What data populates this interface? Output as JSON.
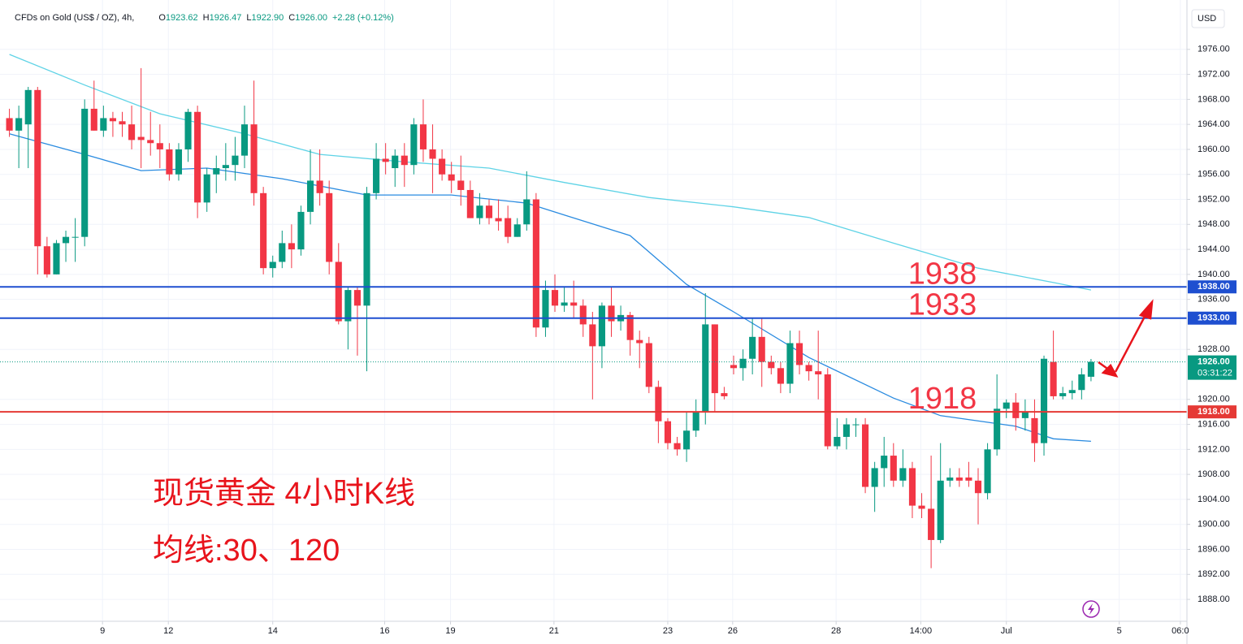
{
  "chart_data": {
    "type": "candlestick",
    "header": {
      "symbol": "CFDs on Gold (US$ / OZ), 4h,",
      "fields": [
        {
          "label": "O",
          "value": "1923.62"
        },
        {
          "label": "H",
          "value": "1926.47"
        },
        {
          "label": "L",
          "value": "1922.90"
        },
        {
          "label": "C",
          "value": "1926.00"
        }
      ],
      "change": "+2.28 (+0.12%)"
    },
    "currency": "USD",
    "annotation_lines": [
      "现货黄金 4小时K线",
      "均线:30、120"
    ],
    "up_color": "#089981",
    "down_color": "#f23645",
    "ohlc": [
      [
        1965,
        1966.5,
        1962,
        1963
      ],
      [
        1963,
        1967,
        1957,
        1965
      ],
      [
        1964,
        1970,
        1957,
        1969.5
      ],
      [
        1969.5,
        1970,
        1940,
        1944.5
      ],
      [
        1944.5,
        1946,
        1939.5,
        1940
      ],
      [
        1940,
        1945.5,
        1940,
        1945
      ],
      [
        1945,
        1947,
        1942,
        1946
      ],
      [
        1946,
        1949,
        1942,
        1946
      ],
      [
        1946,
        1968,
        1944.5,
        1966.5
      ],
      [
        1966.5,
        1971,
        1963,
        1963
      ],
      [
        1963,
        1967,
        1962,
        1965
      ],
      [
        1965,
        1966,
        1962,
        1964.5
      ],
      [
        1964.5,
        1966,
        1962,
        1964
      ],
      [
        1964,
        1967,
        1960,
        1961.5
      ],
      [
        1962,
        1973,
        1957,
        1961.5
      ],
      [
        1961.5,
        1966,
        1959,
        1961
      ],
      [
        1961,
        1964,
        1957,
        1960
      ],
      [
        1960,
        1961,
        1955,
        1956
      ],
      [
        1956,
        1961,
        1955,
        1960
      ],
      [
        1960,
        1966.5,
        1958,
        1966
      ],
      [
        1966,
        1967,
        1949,
        1951.5
      ],
      [
        1951.5,
        1957,
        1950,
        1956
      ],
      [
        1956,
        1959,
        1953,
        1957
      ],
      [
        1957,
        1961,
        1955,
        1957.5
      ],
      [
        1957.5,
        1962,
        1955,
        1959
      ],
      [
        1959,
        1967,
        1957,
        1964
      ],
      [
        1964,
        1971,
        1951,
        1953
      ],
      [
        1953,
        1954,
        1940,
        1941
      ],
      [
        1941,
        1943,
        1939.5,
        1942
      ],
      [
        1942,
        1947,
        1941,
        1945
      ],
      [
        1945,
        1948,
        1941,
        1944
      ],
      [
        1944,
        1951,
        1943,
        1950
      ],
      [
        1950,
        1960,
        1948,
        1955
      ],
      [
        1955,
        1960,
        1951,
        1953
      ],
      [
        1953,
        1955,
        1940,
        1942
      ],
      [
        1942,
        1945,
        1932,
        1932.5
      ],
      [
        1932.5,
        1938,
        1928,
        1937.5
      ],
      [
        1937.5,
        1938,
        1927,
        1935
      ],
      [
        1935,
        1954,
        1924.5,
        1953
      ],
      [
        1953,
        1961,
        1952,
        1958.5
      ],
      [
        1958.5,
        1961,
        1956,
        1958
      ],
      [
        1957,
        1960,
        1954,
        1959
      ],
      [
        1959,
        1961,
        1954,
        1957.5
      ],
      [
        1957.5,
        1965,
        1956,
        1964
      ],
      [
        1964,
        1968,
        1958,
        1960
      ],
      [
        1960,
        1964,
        1953,
        1958.5
      ],
      [
        1958.5,
        1960,
        1955,
        1956
      ],
      [
        1956,
        1958,
        1953,
        1955
      ],
      [
        1955,
        1959,
        1951,
        1953.5
      ],
      [
        1953.5,
        1955,
        1949,
        1949
      ],
      [
        1949,
        1953,
        1948,
        1951
      ],
      [
        1951,
        1952,
        1948,
        1949
      ],
      [
        1949,
        1952,
        1947,
        1948.5
      ],
      [
        1949,
        1951,
        1945,
        1946
      ],
      [
        1946,
        1949,
        1946,
        1948
      ],
      [
        1948,
        1956.5,
        1947,
        1952
      ],
      [
        1952,
        1953,
        1930,
        1931.5
      ],
      [
        1931.5,
        1939,
        1930,
        1937.5
      ],
      [
        1937.5,
        1940,
        1934,
        1935
      ],
      [
        1935,
        1938,
        1934,
        1935.5
      ],
      [
        1935.5,
        1939,
        1933,
        1935
      ],
      [
        1935,
        1936,
        1930,
        1932
      ],
      [
        1932,
        1934,
        1920,
        1928.5
      ],
      [
        1928.5,
        1935.5,
        1925,
        1935
      ],
      [
        1935,
        1938,
        1930,
        1932.5
      ],
      [
        1932.5,
        1935,
        1931,
        1933.5
      ],
      [
        1933.5,
        1934,
        1927,
        1929.5
      ],
      [
        1929.5,
        1931,
        1925,
        1929
      ],
      [
        1929,
        1930,
        1921,
        1922
      ],
      [
        1922,
        1923,
        1913,
        1916.5
      ],
      [
        1916.5,
        1917,
        1912,
        1913
      ],
      [
        1913,
        1914,
        1911,
        1912
      ],
      [
        1912,
        1918,
        1910,
        1915
      ],
      [
        1915,
        1920,
        1914,
        1918
      ],
      [
        1918,
        1937,
        1916,
        1932
      ],
      [
        1932,
        1932,
        1918,
        1921
      ],
      [
        1921,
        1922,
        1920,
        1920.5
      ],
      [
        1925.5,
        1927,
        1924,
        1925
      ],
      [
        1925,
        1928,
        1923,
        1926.5
      ],
      [
        1926.5,
        1933,
        1924,
        1930
      ],
      [
        1930,
        1933,
        1922,
        1926
      ],
      [
        1926,
        1927,
        1924,
        1925
      ],
      [
        1925,
        1926,
        1921,
        1922.5
      ],
      [
        1922.5,
        1931,
        1921,
        1929
      ],
      [
        1929,
        1931,
        1924,
        1925.5
      ],
      [
        1925.5,
        1926,
        1923,
        1924.5
      ],
      [
        1924.5,
        1931,
        1920,
        1924
      ],
      [
        1924,
        1925,
        1912,
        1912.5
      ],
      [
        1912.5,
        1917,
        1912,
        1914
      ],
      [
        1914,
        1917,
        1912,
        1916
      ],
      [
        1916,
        1917,
        1914,
        1916
      ],
      [
        1916,
        1917,
        1905,
        1906
      ],
      [
        1906,
        1910,
        1902,
        1909
      ],
      [
        1909,
        1914,
        1906,
        1911
      ],
      [
        1911,
        1913,
        1906,
        1907
      ],
      [
        1907,
        1912,
        1906,
        1909
      ],
      [
        1909,
        1910,
        1901,
        1903
      ],
      [
        1903,
        1905,
        1901,
        1902.5
      ],
      [
        1902.5,
        1911,
        1893,
        1897.5
      ],
      [
        1897.5,
        1913,
        1897,
        1907
      ],
      [
        1907,
        1909,
        1906,
        1907.5
      ],
      [
        1907.5,
        1909,
        1906,
        1907
      ],
      [
        1907.5,
        1910,
        1906,
        1907
      ],
      [
        1907,
        1909,
        1900,
        1905
      ],
      [
        1905,
        1913,
        1904,
        1912
      ],
      [
        1912,
        1924,
        1911,
        1918.5
      ],
      [
        1918.5,
        1920,
        1917,
        1919.5
      ],
      [
        1919.5,
        1921,
        1915,
        1917
      ],
      [
        1917,
        1920,
        1915,
        1918
      ],
      [
        1917,
        1920,
        1910,
        1913
      ],
      [
        1913,
        1927,
        1911,
        1926.5
      ],
      [
        1926,
        1931,
        1920,
        1920.5
      ],
      [
        1920.5,
        1922,
        1920,
        1921
      ],
      [
        1921,
        1923,
        1920,
        1921.5
      ],
      [
        1921.5,
        1925,
        1920,
        1924
      ],
      [
        1923.62,
        1926.47,
        1922.9,
        1926
      ]
    ],
    "series": [
      {
        "color": "#5fd3e6",
        "x": [
          0,
          8,
          16,
          25,
          33,
          42,
          51,
          59,
          68,
          77,
          85,
          94,
          103,
          111,
          115
        ],
        "values": [
          1975.2,
          1970.3,
          1965.7,
          1962.5,
          1959.2,
          1958,
          1957,
          1954.7,
          1952.3,
          1950.8,
          1949.1,
          1945,
          1941,
          1938.7,
          1937.5
        ]
      },
      {
        "color": "#2a8be0",
        "x": [
          0,
          8,
          14,
          21,
          29,
          38,
          47,
          55,
          59,
          66,
          72,
          77,
          85,
          94,
          99,
          107,
          111,
          115
        ],
        "values": [
          1962.5,
          1959.2,
          1956.6,
          1957,
          1955.3,
          1952.7,
          1952.7,
          1951.4,
          1949.5,
          1946.2,
          1938.4,
          1934,
          1926.7,
          1920.2,
          1917.4,
          1915.7,
          1913.7,
          1913.3
        ]
      }
    ],
    "levels": [
      {
        "value": 1938,
        "label": "1938.00",
        "note": "1938",
        "color": "#1e4fd0"
      },
      {
        "value": 1933,
        "label": "1933.00",
        "note": "1933",
        "color": "#1e4fd0"
      },
      {
        "value": 1918,
        "label": "1918.00",
        "note": "1918",
        "color": "#e53935"
      }
    ],
    "last_price": {
      "value": 1926,
      "label": "1926.00",
      "countdown": "03:31:22",
      "color": "#089981"
    },
    "xlim": [
      -1,
      125.2
    ],
    "xticks": [
      {
        "value": 9.9,
        "label": "9"
      },
      {
        "value": 16.9,
        "label": "12"
      },
      {
        "value": 28,
        "label": "14"
      },
      {
        "value": 39.9,
        "label": "16"
      },
      {
        "value": 46.9,
        "label": "19"
      },
      {
        "value": 57.9,
        "label": "21"
      },
      {
        "value": 70,
        "label": "23"
      },
      {
        "value": 76.9,
        "label": "26"
      },
      {
        "value": 87.9,
        "label": "28"
      },
      {
        "value": 96.9,
        "label": "14:00"
      },
      {
        "value": 106,
        "label": "Jul"
      },
      {
        "value": 118,
        "label": "5"
      },
      {
        "value": 124.5,
        "label": "06:0"
      }
    ],
    "ylim": [
      1884.5,
      1983.9
    ],
    "yticks": [
      {
        "value": 1976,
        "label": "1976.00"
      },
      {
        "value": 1972,
        "label": "1972.00"
      },
      {
        "value": 1968,
        "label": "1968.00"
      },
      {
        "value": 1964,
        "label": "1964.00"
      },
      {
        "value": 1960,
        "label": "1960.00"
      },
      {
        "value": 1956,
        "label": "1956.00"
      },
      {
        "value": 1952,
        "label": "1952.00"
      },
      {
        "value": 1948,
        "label": "1948.00"
      },
      {
        "value": 1944,
        "label": "1944.00"
      },
      {
        "value": 1940,
        "label": "1940.00"
      },
      {
        "value": 1936,
        "label": "1936.00"
      },
      {
        "value": 1928,
        "label": "1928.00"
      },
      {
        "value": 1920,
        "label": "1920.00"
      },
      {
        "value": 1916,
        "label": "1916.00"
      },
      {
        "value": 1912,
        "label": "1912.00"
      },
      {
        "value": 1908,
        "label": "1908.00"
      },
      {
        "value": 1904,
        "label": "1904.00"
      },
      {
        "value": 1900,
        "label": "1900.00"
      },
      {
        "value": 1896,
        "label": "1896.00"
      },
      {
        "value": 1892,
        "label": "1892.00"
      },
      {
        "value": 1888,
        "label": "1888.00"
      }
    ],
    "grid": true
  }
}
